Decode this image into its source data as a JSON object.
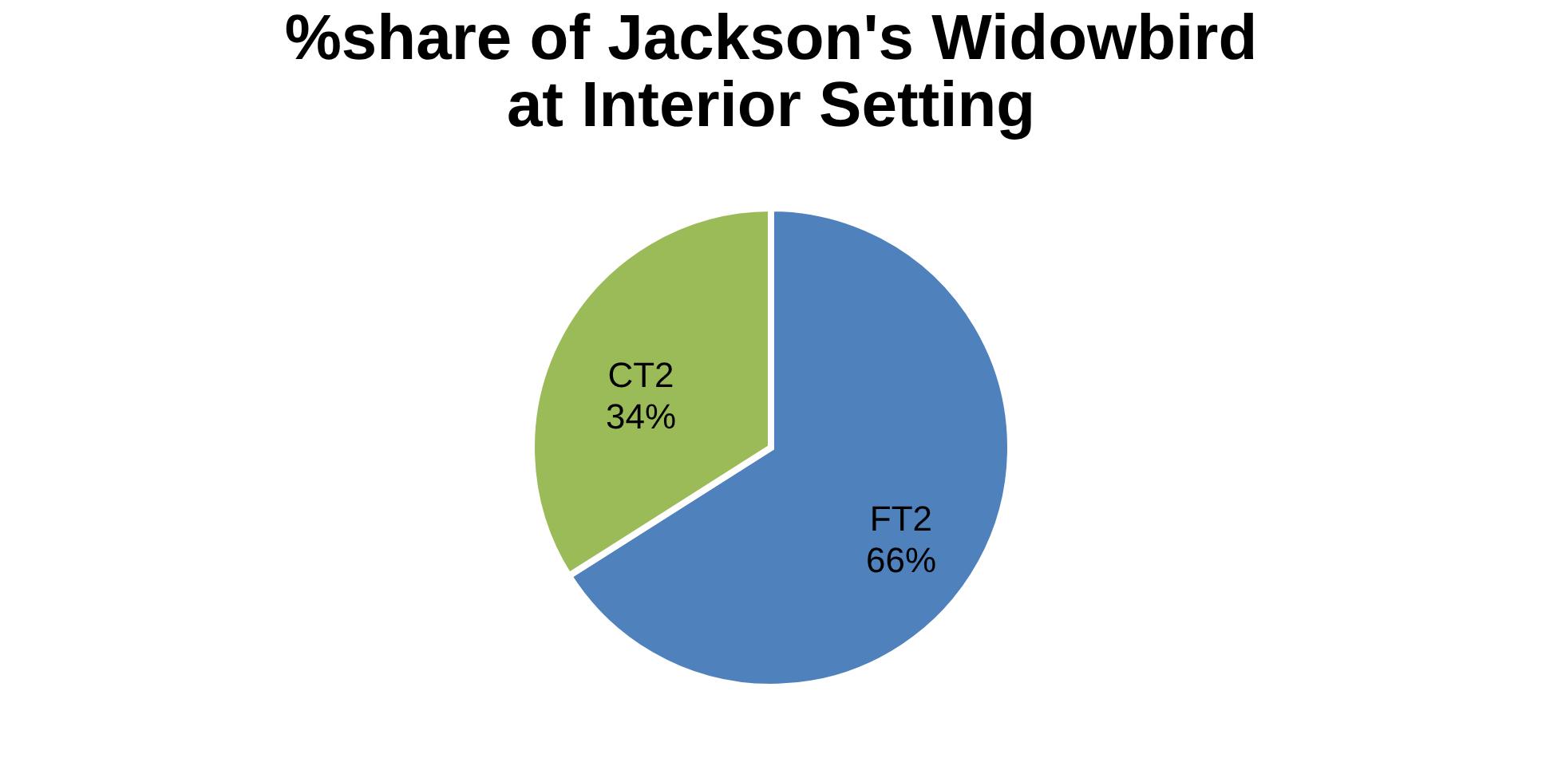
{
  "chart_data": {
    "type": "pie",
    "title": "%share of Jackson's Widowbird  at Interior Setting",
    "categories": [
      "FT2",
      "CT2"
    ],
    "values": [
      66,
      34
    ],
    "value_labels": [
      "66%",
      "34%"
    ],
    "colors": [
      "#4f81bd",
      "#9bbb59"
    ],
    "legend": false
  }
}
